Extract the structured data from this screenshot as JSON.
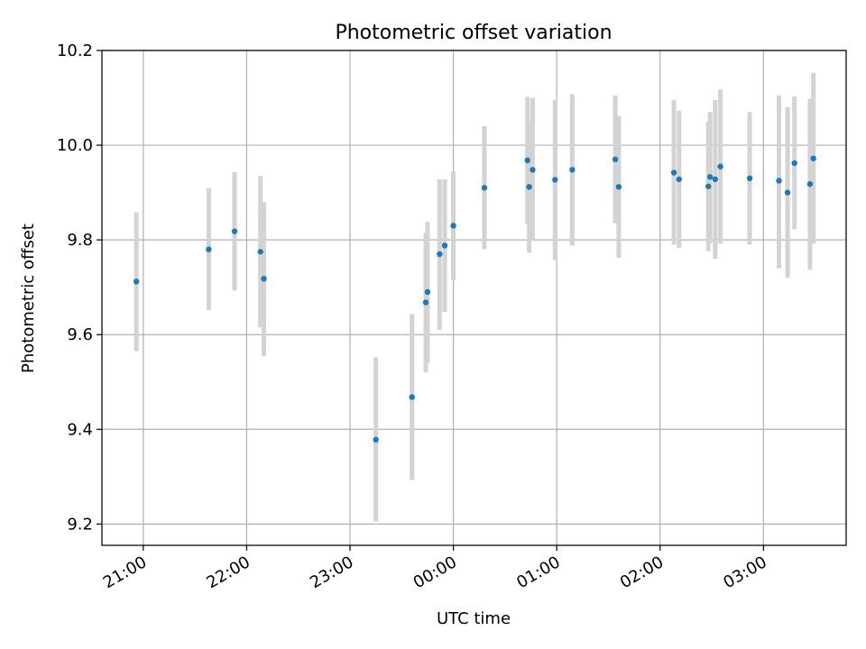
{
  "chart_data": {
    "type": "scatter",
    "title": "Photometric offset variation",
    "xlabel": "UTC time",
    "ylabel": "Photometric offset",
    "x_type": "time",
    "xlim": [
      "20:36",
      "03:48"
    ],
    "ylim": [
      9.155,
      10.2
    ],
    "x_ticks": [
      "21:00",
      "22:00",
      "23:00",
      "00:00",
      "01:00",
      "02:00",
      "03:00"
    ],
    "y_ticks": [
      "9.2",
      "9.4",
      "9.6",
      "9.8",
      "10.0",
      "10.2"
    ],
    "grid": true,
    "colors": {
      "point": "#1f77b4",
      "errorbar": "#d3d3d3",
      "grid": "#b0b0b0"
    },
    "series": [
      {
        "points": [
          {
            "x": "20:56",
            "y": 9.712,
            "ylo": 9.565,
            "yhi": 9.858
          },
          {
            "x": "21:38",
            "y": 9.78,
            "ylo": 9.652,
            "yhi": 9.91
          },
          {
            "x": "21:53",
            "y": 9.818,
            "ylo": 9.693,
            "yhi": 9.943
          },
          {
            "x": "22:08",
            "y": 9.775,
            "ylo": 9.615,
            "yhi": 9.935
          },
          {
            "x": "22:10",
            "y": 9.718,
            "ylo": 9.555,
            "yhi": 9.88
          },
          {
            "x": "23:15",
            "y": 9.378,
            "ylo": 9.205,
            "yhi": 9.552
          },
          {
            "x": "23:36",
            "y": 9.468,
            "ylo": 9.293,
            "yhi": 9.643
          },
          {
            "x": "23:44",
            "y": 9.668,
            "ylo": 9.52,
            "yhi": 9.815
          },
          {
            "x": "23:45",
            "y": 9.69,
            "ylo": 9.54,
            "yhi": 9.838
          },
          {
            "x": "23:52",
            "y": 9.77,
            "ylo": 9.61,
            "yhi": 9.928
          },
          {
            "x": "23:55",
            "y": 9.788,
            "ylo": 9.648,
            "yhi": 9.928
          },
          {
            "x": "00:00",
            "y": 9.83,
            "ylo": 9.715,
            "yhi": 9.945
          },
          {
            "x": "00:18",
            "y": 9.91,
            "ylo": 9.78,
            "yhi": 10.04
          },
          {
            "x": "00:43",
            "y": 9.968,
            "ylo": 9.833,
            "yhi": 10.102
          },
          {
            "x": "00:44",
            "y": 9.912,
            "ylo": 9.773,
            "yhi": 10.05
          },
          {
            "x": "00:46",
            "y": 9.948,
            "ylo": 9.798,
            "yhi": 10.1
          },
          {
            "x": "00:59",
            "y": 9.927,
            "ylo": 9.758,
            "yhi": 10.095
          },
          {
            "x": "01:09",
            "y": 9.948,
            "ylo": 9.788,
            "yhi": 10.108
          },
          {
            "x": "01:34",
            "y": 9.97,
            "ylo": 9.835,
            "yhi": 10.105
          },
          {
            "x": "01:36",
            "y": 9.912,
            "ylo": 9.762,
            "yhi": 10.062
          },
          {
            "x": "02:08",
            "y": 9.942,
            "ylo": 9.79,
            "yhi": 10.095
          },
          {
            "x": "02:11",
            "y": 9.928,
            "ylo": 9.783,
            "yhi": 10.073
          },
          {
            "x": "02:28",
            "y": 9.913,
            "ylo": 9.776,
            "yhi": 10.05
          },
          {
            "x": "02:29",
            "y": 9.933,
            "ylo": 9.793,
            "yhi": 10.07
          },
          {
            "x": "02:32",
            "y": 9.928,
            "ylo": 9.76,
            "yhi": 10.095
          },
          {
            "x": "02:35",
            "y": 9.955,
            "ylo": 9.792,
            "yhi": 10.118
          },
          {
            "x": "02:52",
            "y": 9.93,
            "ylo": 9.79,
            "yhi": 10.07
          },
          {
            "x": "03:09",
            "y": 9.925,
            "ylo": 9.74,
            "yhi": 10.105
          },
          {
            "x": "03:14",
            "y": 9.9,
            "ylo": 9.72,
            "yhi": 10.08
          },
          {
            "x": "03:18",
            "y": 9.962,
            "ylo": 9.822,
            "yhi": 10.103
          },
          {
            "x": "03:27",
            "y": 9.918,
            "ylo": 9.737,
            "yhi": 10.098
          },
          {
            "x": "03:29",
            "y": 9.972,
            "ylo": 9.792,
            "yhi": 10.153
          }
        ]
      }
    ]
  }
}
